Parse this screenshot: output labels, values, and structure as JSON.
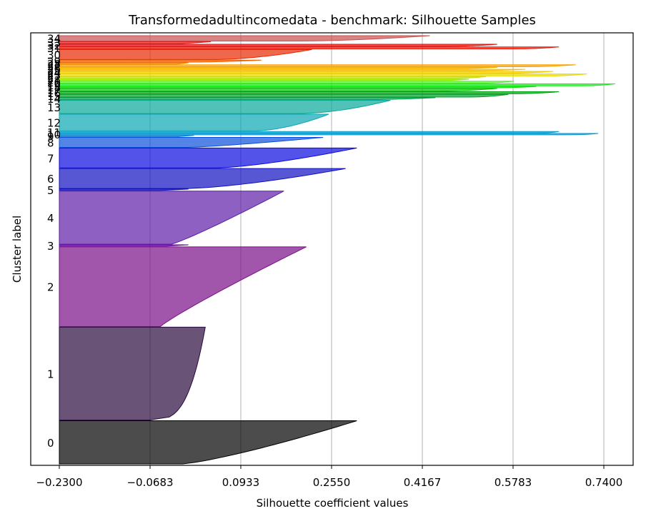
{
  "chart_data": {
    "type": "silhouette",
    "title": "Transformedadultincomedata - benchmark: Silhouette Samples",
    "xlabel": "Silhouette coefficient values",
    "ylabel": "Cluster label",
    "xlim": [
      -0.23,
      0.74
    ],
    "x_ticks": [
      "−0.2300",
      "−0.0683",
      "0.0933",
      "0.2550",
      "0.4167",
      "0.5783",
      "0.7400"
    ],
    "x_tick_values": [
      -0.23,
      -0.0683,
      0.0933,
      0.255,
      0.4167,
      0.5783,
      0.74
    ],
    "grid": "x",
    "clusters": [
      {
        "label": "0",
        "color": "#000000",
        "size": 6.5,
        "max": 0.3,
        "min": -0.01,
        "shape": 0.8
      },
      {
        "label": "1",
        "color": "#2a0a3c",
        "size": 14,
        "max": 0.03,
        "min": -0.07,
        "shape": 0.3
      },
      {
        "label": "2",
        "color": "#7a0e88",
        "size": 12,
        "max": 0.21,
        "min": -0.05,
        "shape": 1.1
      },
      {
        "label": "3",
        "color": "#6a0a9a",
        "size": 0.2,
        "max": 0.0,
        "min": -0.04,
        "shape": 1.0
      },
      {
        "label": "4",
        "color": "#5c1ca6",
        "size": 8,
        "max": 0.17,
        "min": -0.03,
        "shape": 0.9
      },
      {
        "label": "5",
        "color": "#1a14b2",
        "size": 0.2,
        "max": 0.0,
        "min": -0.05,
        "shape": 1.0
      },
      {
        "label": "6",
        "color": "#1010c0",
        "size": 3,
        "max": 0.28,
        "min": 0.0,
        "shape": 0.7
      },
      {
        "label": "7",
        "color": "#0a0ae0",
        "size": 3,
        "max": 0.3,
        "min": 0.05,
        "shape": 0.7
      },
      {
        "label": "8",
        "color": "#0a50dc",
        "size": 1.5,
        "max": 0.24,
        "min": 0.0,
        "shape": 0.8
      },
      {
        "label": "9",
        "color": "#0a80d0",
        "size": 0.2,
        "max": 0.01,
        "min": -0.02,
        "shape": 1.0
      },
      {
        "label": "10",
        "color": "#0a96d2",
        "size": 0.2,
        "max": 0.73,
        "min": 0.66,
        "shape": 0.3
      },
      {
        "label": "11",
        "color": "#0aa0c8",
        "size": 0.2,
        "max": 0.66,
        "min": 0.62,
        "shape": 0.3
      },
      {
        "label": "12",
        "color": "#08a6b2",
        "size": 2.5,
        "max": 0.25,
        "min": 0.12,
        "shape": 0.6
      },
      {
        "label": "13",
        "color": "#07a898",
        "size": 2,
        "max": 0.36,
        "min": 0.2,
        "shape": 0.6
      },
      {
        "label": "14",
        "color": "#06a050",
        "size": 0.3,
        "max": 0.44,
        "min": 0.3,
        "shape": 0.5
      },
      {
        "label": "15",
        "color": "#04a02a",
        "size": 0.4,
        "max": 0.57,
        "min": 0.5,
        "shape": 0.5
      },
      {
        "label": "16",
        "color": "#04a014",
        "size": 0.3,
        "max": 0.66,
        "min": 0.58,
        "shape": 0.5
      },
      {
        "label": "17",
        "color": "#04c404",
        "size": 0.4,
        "max": 0.55,
        "min": 0.44,
        "shape": 0.5
      },
      {
        "label": "18",
        "color": "#10dc10",
        "size": 0.2,
        "max": 0.62,
        "min": 0.54,
        "shape": 0.5
      },
      {
        "label": "19",
        "color": "#14f014",
        "size": 0.3,
        "max": 0.76,
        "min": 0.7,
        "shape": 0.5
      },
      {
        "label": "20",
        "color": "#50f030",
        "size": 0.3,
        "max": 0.58,
        "min": 0.52,
        "shape": 0.5
      },
      {
        "label": "21",
        "color": "#90f000",
        "size": 0.2,
        "max": 0.5,
        "min": 0.44,
        "shape": 0.5
      },
      {
        "label": "22",
        "color": "#c0e000",
        "size": 0.3,
        "max": 0.53,
        "min": 0.46,
        "shape": 0.5
      },
      {
        "label": "23",
        "color": "#e8dc00",
        "size": 0.3,
        "max": 0.71,
        "min": 0.64,
        "shape": 0.5
      },
      {
        "label": "24",
        "color": "#f0cc00",
        "size": 0.3,
        "max": 0.65,
        "min": 0.56,
        "shape": 0.5
      },
      {
        "label": "25",
        "color": "#f8c000",
        "size": 0.2,
        "max": 0.6,
        "min": 0.5,
        "shape": 0.5
      },
      {
        "label": "26",
        "color": "#f8b000",
        "size": 0.2,
        "max": 0.55,
        "min": 0.46,
        "shape": 0.5
      },
      {
        "label": "27",
        "color": "#f8a000",
        "size": 0.3,
        "max": 0.69,
        "min": 0.6,
        "shape": 0.5
      },
      {
        "label": "28",
        "color": "#f88000",
        "size": 0.2,
        "max": 0.0,
        "min": -0.02,
        "shape": 1.0
      },
      {
        "label": "29",
        "color": "#f06000",
        "size": 0.3,
        "max": 0.13,
        "min": 0.0,
        "shape": 0.6
      },
      {
        "label": "30",
        "color": "#e82800",
        "size": 1.5,
        "max": 0.22,
        "min": 0.05,
        "shape": 0.6
      },
      {
        "label": "31",
        "color": "#e41a0a",
        "size": 0.3,
        "max": 0.66,
        "min": 0.58,
        "shape": 0.5
      },
      {
        "label": "32",
        "color": "#de1010",
        "size": 0.3,
        "max": 0.55,
        "min": 0.46,
        "shape": 0.5
      },
      {
        "label": "33",
        "color": "#d82020",
        "size": 0.3,
        "max": 0.04,
        "min": -0.02,
        "shape": 0.7
      },
      {
        "label": "34",
        "color": "#c85050",
        "size": 0.8,
        "max": 0.43,
        "min": 0.2,
        "shape": 0.6
      }
    ]
  }
}
